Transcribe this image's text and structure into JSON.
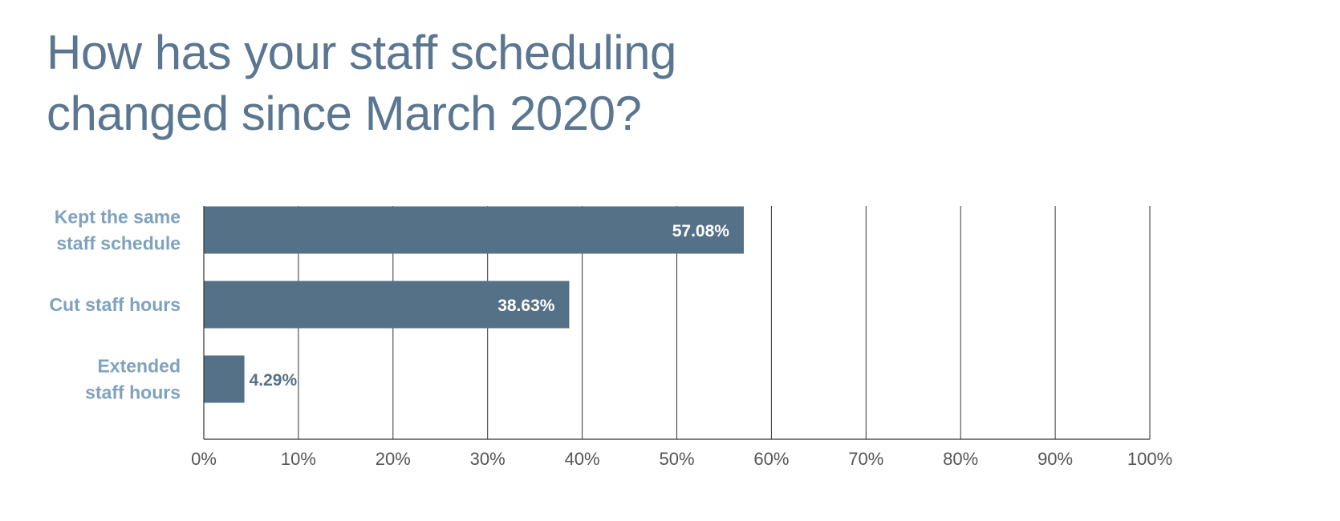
{
  "chart_data": {
    "type": "bar",
    "orientation": "horizontal",
    "title_lines": [
      "How has your staff scheduling",
      "changed since March 2020?"
    ],
    "categories": [
      [
        "Kept the same",
        "staff schedule"
      ],
      [
        "Cut staff hours"
      ],
      [
        "Extended",
        "staff hours"
      ]
    ],
    "values": [
      57.08,
      38.63,
      4.29
    ],
    "value_labels": [
      "57.08%",
      "38.63%",
      "4.29%"
    ],
    "xlim": [
      0,
      100
    ],
    "x_ticks": [
      0,
      10,
      20,
      30,
      40,
      50,
      60,
      70,
      80,
      90,
      100
    ],
    "x_tick_labels": [
      "0%",
      "10%",
      "20%",
      "30%",
      "40%",
      "50%",
      "60%",
      "70%",
      "80%",
      "90%",
      "100%"
    ],
    "grid": true,
    "legend": "none",
    "colors": {
      "bar": "#557188",
      "title": "#5a7690",
      "category_label": "#7fa2bc",
      "value_label_inside": "#ffffff",
      "value_label_outside": "#557188",
      "gridline": "#333333",
      "tick_label": "#555555"
    }
  }
}
